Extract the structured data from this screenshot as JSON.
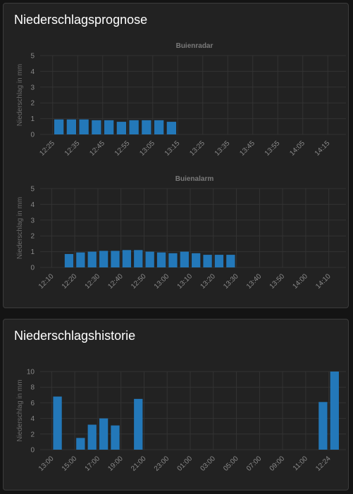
{
  "cards": [
    {
      "title": "Niederschlagsprognose"
    },
    {
      "title": "Niederschlagshistorie"
    }
  ],
  "colors": {
    "bar": "#2378b9",
    "grid": "#333333",
    "tick": "#8a8a8a",
    "chart_title": "#7a7a7a"
  },
  "chart_data": [
    {
      "type": "bar",
      "title": "Buienradar",
      "ylabel": "Niederschlag in mm",
      "ylim": [
        0,
        5
      ],
      "yticks": [
        0,
        1,
        2,
        3,
        4,
        5
      ],
      "xticks": [
        "12:25",
        "12:35",
        "12:45",
        "12:55",
        "13:05",
        "13:15",
        "13:25",
        "13:35",
        "13:45",
        "13:55",
        "14:05",
        "14:15"
      ],
      "slots_per_tick": 2,
      "values": [
        0.95,
        0.95,
        0.95,
        0.9,
        0.9,
        0.8,
        0.9,
        0.9,
        0.9,
        0.8
      ]
    },
    {
      "type": "bar",
      "title": "Buienalarm",
      "ylabel": "Niederschlag in mm",
      "ylim": [
        0,
        5
      ],
      "yticks": [
        0,
        1,
        2,
        3,
        4,
        5
      ],
      "xticks": [
        "12:10",
        "12:20",
        "12:30",
        "12:40",
        "12:50",
        "13:00",
        "13:10",
        "13:20",
        "13:30",
        "13:40",
        "13:50",
        "14:00",
        "14:10"
      ],
      "slots_per_tick": 2,
      "values": [
        0,
        0.85,
        0.95,
        1.0,
        1.05,
        1.05,
        1.1,
        1.1,
        1.0,
        0.95,
        0.9,
        1.0,
        0.9,
        0.8,
        0.8,
        0.8
      ]
    },
    {
      "type": "bar",
      "title": "",
      "ylabel": "Niederschlag in mm",
      "ylim": [
        0,
        10
      ],
      "yticks": [
        0,
        2,
        4,
        6,
        8,
        10
      ],
      "xticks": [
        "13:00",
        "15:00",
        "17:00",
        "19:00",
        "21:00",
        "23:00",
        "01:00",
        "03:00",
        "05:00",
        "07:00",
        "09:00",
        "11:00",
        "12:24"
      ],
      "slots_per_tick": 2,
      "values": [
        6.8,
        0,
        1.5,
        3.2,
        4.0,
        3.1,
        0,
        6.5,
        0,
        0,
        0,
        0,
        0,
        0,
        0,
        0,
        0,
        0,
        0,
        0,
        0,
        0,
        0,
        6.1,
        10.0
      ]
    }
  ]
}
